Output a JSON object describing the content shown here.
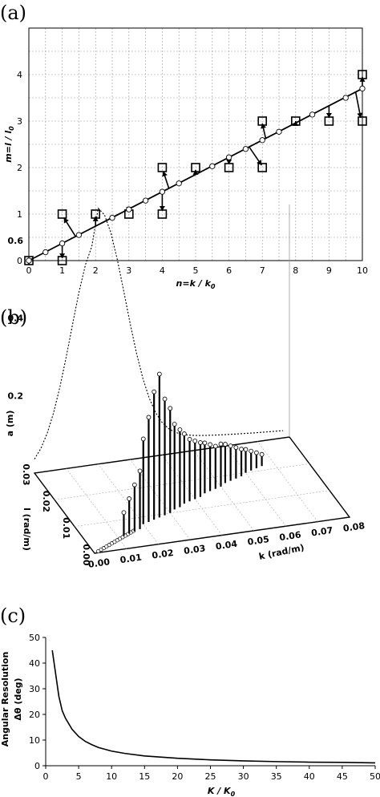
{
  "panels": {
    "a": {
      "label": "(a)"
    },
    "b": {
      "label": "(b)"
    },
    "c": {
      "label": "(c)"
    }
  },
  "chart_data": [
    {
      "id": "a",
      "type": "scatter",
      "xlabel": "n=k / k",
      "xlabel_sub": "0",
      "ylabel": "m=l / l",
      "ylabel_sub": "0",
      "xlim": [
        0,
        10
      ],
      "ylim": [
        0,
        5
      ],
      "xticks": [
        0,
        1,
        2,
        3,
        4,
        5,
        6,
        7,
        8,
        9,
        10
      ],
      "yticks": [
        0,
        1,
        2,
        3,
        4
      ],
      "grid": true,
      "line": {
        "x": [
          0,
          10
        ],
        "y": [
          0,
          3.7
        ]
      },
      "squares": [
        {
          "x": 0,
          "y": 0
        },
        {
          "x": 1,
          "y": 0
        },
        {
          "x": 1,
          "y": 1
        },
        {
          "x": 2,
          "y": 1
        },
        {
          "x": 3,
          "y": 1
        },
        {
          "x": 4,
          "y": 1
        },
        {
          "x": 4,
          "y": 2
        },
        {
          "x": 5,
          "y": 2
        },
        {
          "x": 6,
          "y": 2
        },
        {
          "x": 7,
          "y": 2
        },
        {
          "x": 7,
          "y": 3
        },
        {
          "x": 8,
          "y": 3
        },
        {
          "x": 9,
          "y": 3
        },
        {
          "x": 10,
          "y": 3
        },
        {
          "x": 10,
          "y": 4
        }
      ],
      "circles": [
        {
          "x": 0,
          "y": 0
        },
        {
          "x": 0.5,
          "y": 0.18
        },
        {
          "x": 1,
          "y": 0.37
        },
        {
          "x": 1.5,
          "y": 0.55
        },
        {
          "x": 2.5,
          "y": 0.92
        },
        {
          "x": 3,
          "y": 1.1
        },
        {
          "x": 3.5,
          "y": 1.29
        },
        {
          "x": 4,
          "y": 1.48
        },
        {
          "x": 4.5,
          "y": 1.66
        },
        {
          "x": 5.5,
          "y": 2.03
        },
        {
          "x": 6,
          "y": 2.22
        },
        {
          "x": 6.5,
          "y": 2.4
        },
        {
          "x": 7,
          "y": 2.59
        },
        {
          "x": 7.5,
          "y": 2.77
        },
        {
          "x": 8.5,
          "y": 3.14
        },
        {
          "x": 9.5,
          "y": 3.5
        },
        {
          "x": 10,
          "y": 3.7
        }
      ],
      "arrows": [
        {
          "from": [
            0,
            0
          ],
          "to": [
            0,
            -0.08
          ]
        },
        {
          "from": [
            1,
            0.37
          ],
          "to": [
            1,
            0.05
          ]
        },
        {
          "from": [
            1.4,
            0.52
          ],
          "to": [
            1.05,
            0.92
          ]
        },
        {
          "from": [
            2,
            0.74
          ],
          "to": [
            2,
            0.95
          ]
        },
        {
          "from": [
            3,
            1.1
          ],
          "to": [
            3,
            1.05
          ]
        },
        {
          "from": [
            4,
            1.48
          ],
          "to": [
            4,
            1.07
          ]
        },
        {
          "from": [
            4.2,
            1.55
          ],
          "to": [
            4.03,
            1.92
          ]
        },
        {
          "from": [
            5,
            1.85
          ],
          "to": [
            5,
            1.95
          ]
        },
        {
          "from": [
            6,
            2.22
          ],
          "to": [
            6,
            2.07
          ]
        },
        {
          "from": [
            6.6,
            2.45
          ],
          "to": [
            6.98,
            2.05
          ]
        },
        {
          "from": [
            7.1,
            2.63
          ],
          "to": [
            7,
            2.95
          ]
        },
        {
          "from": [
            8,
            2.96
          ],
          "to": [
            8,
            3.0
          ]
        },
        {
          "from": [
            9,
            3.33
          ],
          "to": [
            9,
            3.07
          ]
        },
        {
          "from": [
            9.8,
            3.62
          ],
          "to": [
            9.95,
            3.07
          ]
        },
        {
          "from": [
            10,
            3.7
          ],
          "to": [
            10,
            3.95
          ]
        }
      ]
    },
    {
      "id": "b",
      "type": "scatter",
      "zlabel": "a  (m)",
      "xlabel": "k  (rad/m)",
      "ylabel": "l  (rad/m)",
      "xticks": [
        "0.00",
        "0.01",
        "0.02",
        "0.03",
        "0.04",
        "0.05",
        "0.06",
        "0.07",
        "0.08"
      ],
      "yticks": [
        "0.00",
        "0.01",
        "0.02",
        "0.03"
      ],
      "zticks": [
        "0.2",
        "0.4",
        "0.6"
      ],
      "zlim": [
        0,
        0.6
      ],
      "xlim": [
        0,
        0.08
      ],
      "ylim": [
        0,
        0.03
      ],
      "stems": [
        {
          "k": 0.012,
          "l": 0.0045,
          "a": 0.06
        },
        {
          "k": 0.014,
          "l": 0.005,
          "a": 0.09
        },
        {
          "k": 0.016,
          "l": 0.0055,
          "a": 0.12
        },
        {
          "k": 0.018,
          "l": 0.006,
          "a": 0.15
        },
        {
          "k": 0.02,
          "l": 0.0075,
          "a": 0.22
        },
        {
          "k": 0.022,
          "l": 0.008,
          "a": 0.27
        },
        {
          "k": 0.024,
          "l": 0.0085,
          "a": 0.33
        },
        {
          "k": 0.026,
          "l": 0.009,
          "a": 0.37
        },
        {
          "k": 0.028,
          "l": 0.0095,
          "a": 0.3
        },
        {
          "k": 0.03,
          "l": 0.01,
          "a": 0.27
        },
        {
          "k": 0.032,
          "l": 0.011,
          "a": 0.22
        },
        {
          "k": 0.034,
          "l": 0.0115,
          "a": 0.2
        },
        {
          "k": 0.036,
          "l": 0.0125,
          "a": 0.18
        },
        {
          "k": 0.038,
          "l": 0.013,
          "a": 0.16
        },
        {
          "k": 0.04,
          "l": 0.0135,
          "a": 0.15
        },
        {
          "k": 0.042,
          "l": 0.014,
          "a": 0.14
        },
        {
          "k": 0.044,
          "l": 0.015,
          "a": 0.13
        },
        {
          "k": 0.046,
          "l": 0.0155,
          "a": 0.12
        },
        {
          "k": 0.048,
          "l": 0.016,
          "a": 0.11
        },
        {
          "k": 0.05,
          "l": 0.0165,
          "a": 0.11
        },
        {
          "k": 0.052,
          "l": 0.0175,
          "a": 0.1
        },
        {
          "k": 0.054,
          "l": 0.018,
          "a": 0.09
        },
        {
          "k": 0.056,
          "l": 0.0185,
          "a": 0.08
        },
        {
          "k": 0.058,
          "l": 0.019,
          "a": 0.07
        },
        {
          "k": 0.06,
          "l": 0.02,
          "a": 0.06
        },
        {
          "k": 0.062,
          "l": 0.0205,
          "a": 0.05
        },
        {
          "k": 0.064,
          "l": 0.021,
          "a": 0.04
        },
        {
          "k": 0.066,
          "l": 0.0215,
          "a": 0.03
        }
      ],
      "envelope_peak": {
        "k": 0.02,
        "a": 0.58
      }
    },
    {
      "id": "c",
      "type": "line",
      "ylabel": "Angular Resolution",
      "ylabel2": "Δθ  (deg)",
      "xlabel": "K / K",
      "xlabel_sub": "0",
      "xlim": [
        0,
        50
      ],
      "ylim": [
        0,
        50
      ],
      "xticks": [
        0,
        5,
        10,
        15,
        20,
        25,
        30,
        35,
        40,
        45,
        50
      ],
      "yticks": [
        0,
        10,
        20,
        30,
        40,
        50
      ],
      "x": [
        1,
        1.5,
        2,
        2.5,
        3,
        4,
        5,
        6,
        7,
        8,
        10,
        12,
        15,
        20,
        25,
        30,
        35,
        40,
        45,
        50
      ],
      "y": [
        45,
        36,
        27,
        21.5,
        18.5,
        14.2,
        11.4,
        9.5,
        8.2,
        7.1,
        5.7,
        4.8,
        3.8,
        2.9,
        2.3,
        1.9,
        1.6,
        1.4,
        1.3,
        1.1
      ]
    }
  ]
}
